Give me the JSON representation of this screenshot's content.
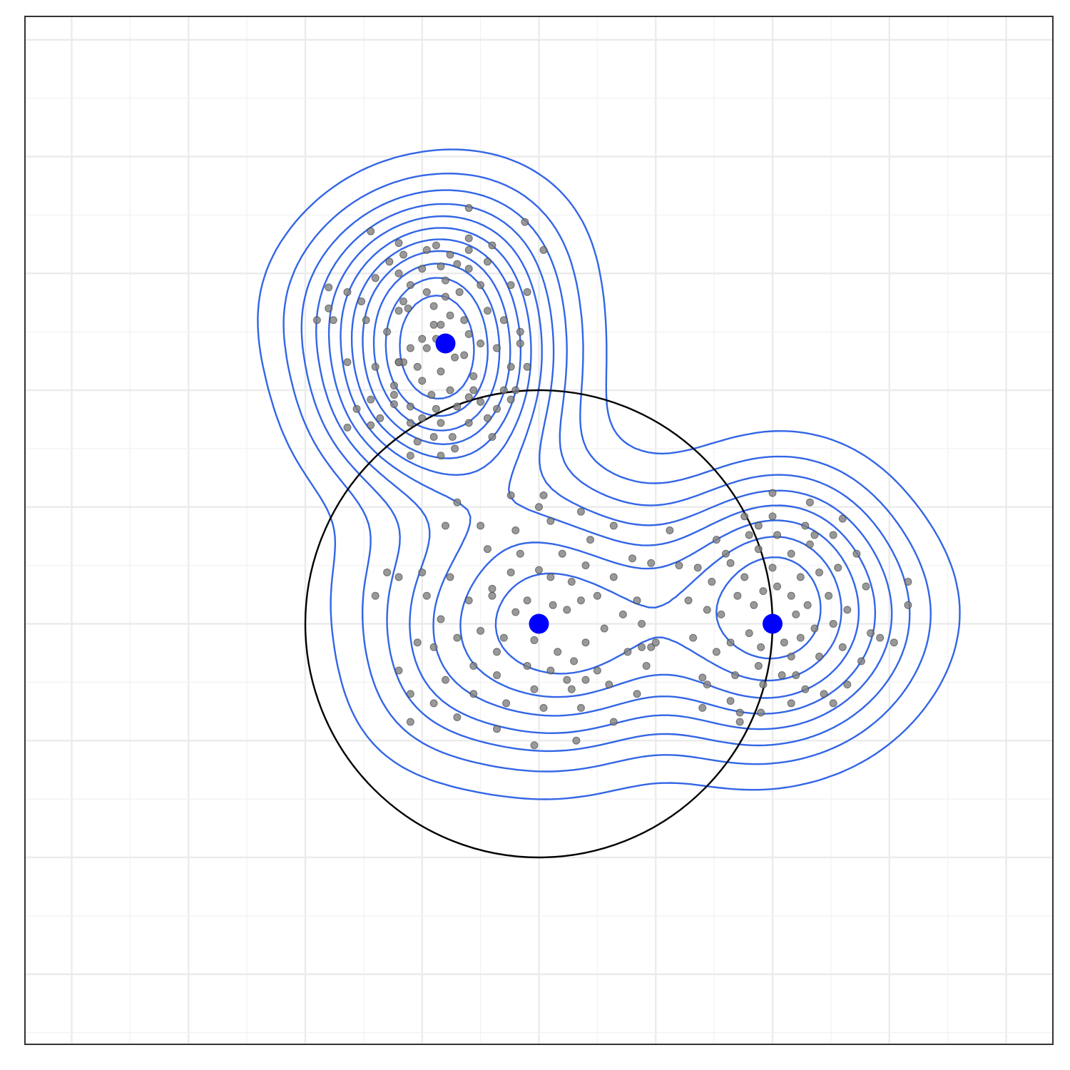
{
  "chart_data": {
    "type": "scatter",
    "title": "",
    "xlabel": "",
    "ylabel": "",
    "xlim": [
      -2.2,
      2.2
    ],
    "ylim": [
      -1.8,
      2.6
    ],
    "grid": true,
    "legend": "none",
    "colors": {
      "panel_border": "#333333",
      "grid_major": "#ebebeb",
      "grid_minor": "#f2f2f2",
      "contour": "#3366e6",
      "points": "#808080",
      "centers": "#0000ff",
      "circle": "#000000"
    },
    "circle": {
      "cx": 0.0,
      "cy": 0.0,
      "r": 1.0
    },
    "centers": [
      {
        "x": -0.4,
        "y": 1.2
      },
      {
        "x": 0.0,
        "y": 0.0
      },
      {
        "x": 1.0,
        "y": 0.0
      }
    ],
    "points": [
      [
        -0.55,
        1.18
      ],
      [
        -0.5,
        1.22
      ],
      [
        -0.45,
        1.28
      ],
      [
        -0.38,
        1.32
      ],
      [
        -0.32,
        1.3
      ],
      [
        -0.42,
        1.08
      ],
      [
        -0.36,
        1.14
      ],
      [
        -0.3,
        1.24
      ],
      [
        -0.5,
        1.04
      ],
      [
        -0.46,
        0.98
      ],
      [
        -0.28,
        1.06
      ],
      [
        -0.6,
        1.12
      ],
      [
        -0.65,
        1.25
      ],
      [
        -0.62,
        1.02
      ],
      [
        -0.7,
        1.1
      ],
      [
        -0.56,
        1.35
      ],
      [
        -0.48,
        1.42
      ],
      [
        -0.4,
        1.47
      ],
      [
        -0.34,
        1.42
      ],
      [
        -0.22,
        1.34
      ],
      [
        -0.18,
        1.18
      ],
      [
        -0.25,
        1.2
      ],
      [
        -0.3,
        0.97
      ],
      [
        -0.35,
        0.93
      ],
      [
        -0.44,
        0.92
      ],
      [
        -0.55,
        0.93
      ],
      [
        -0.62,
        0.98
      ],
      [
        -0.72,
        0.96
      ],
      [
        -0.74,
        1.3
      ],
      [
        -0.76,
        1.38
      ],
      [
        -0.6,
        1.5
      ],
      [
        -0.5,
        1.52
      ],
      [
        -0.42,
        1.53
      ],
      [
        -0.35,
        1.54
      ],
      [
        -0.3,
        1.52
      ],
      [
        -0.25,
        1.45
      ],
      [
        -0.15,
        1.3
      ],
      [
        -0.12,
        1.1
      ],
      [
        -0.15,
        1.0
      ],
      [
        -0.22,
        0.88
      ],
      [
        -0.3,
        0.86
      ],
      [
        -0.37,
        0.8
      ],
      [
        -0.45,
        0.8
      ],
      [
        -0.55,
        0.86
      ],
      [
        -0.68,
        0.88
      ],
      [
        -0.82,
        1.12
      ],
      [
        -0.88,
        1.3
      ],
      [
        -0.9,
        1.35
      ],
      [
        -0.82,
        1.42
      ],
      [
        -0.7,
        1.48
      ],
      [
        -0.64,
        1.55
      ],
      [
        -0.58,
        1.58
      ],
      [
        -0.48,
        1.6
      ],
      [
        -0.38,
        1.58
      ],
      [
        -0.3,
        1.6
      ],
      [
        -0.22,
        1.55
      ],
      [
        -0.12,
        1.45
      ],
      [
        -0.08,
        1.25
      ],
      [
        -0.08,
        1.2
      ],
      [
        -0.1,
        1.0
      ],
      [
        -0.18,
        0.92
      ],
      [
        -0.36,
        0.75
      ],
      [
        -0.42,
        0.72
      ],
      [
        -0.55,
        0.72
      ],
      [
        -0.78,
        0.92
      ],
      [
        -0.82,
        0.84
      ],
      [
        -0.95,
        1.3
      ],
      [
        -0.9,
        1.44
      ],
      [
        -0.72,
        1.68
      ],
      [
        -0.6,
        1.63
      ],
      [
        -0.44,
        1.62
      ],
      [
        -0.3,
        1.65
      ],
      [
        -0.2,
        1.62
      ],
      [
        -0.05,
        1.42
      ],
      [
        -0.05,
        1.1
      ],
      [
        -0.12,
        0.96
      ],
      [
        -0.2,
        0.8
      ],
      [
        -0.25,
        0.95
      ],
      [
        -0.52,
        0.78
      ],
      [
        -0.6,
        1.34
      ],
      [
        -0.4,
        1.4
      ],
      [
        -0.45,
        1.36
      ],
      [
        -0.55,
        1.45
      ],
      [
        -0.32,
        1.15
      ],
      [
        -0.28,
        1.0
      ],
      [
        -0.48,
        1.18
      ],
      [
        -0.42,
        1.28
      ],
      [
        -0.52,
        1.1
      ],
      [
        -0.58,
        1.12
      ],
      [
        -0.38,
        1.0
      ],
      [
        -0.42,
        0.86
      ],
      [
        -0.06,
        1.72
      ],
      [
        0.02,
        1.6
      ],
      [
        -0.3,
        1.78
      ],
      [
        -0.58,
        1.38
      ],
      [
        -0.72,
        0.85
      ],
      [
        -0.62,
        0.94
      ],
      [
        -0.5,
        0.88
      ],
      [
        -0.6,
        1.12
      ],
      [
        -0.44,
        1.22
      ],
      [
        -0.1,
        0.05
      ],
      [
        -0.05,
        0.1
      ],
      [
        0.06,
        0.08
      ],
      [
        0.12,
        0.06
      ],
      [
        -0.15,
        -0.06
      ],
      [
        -0.02,
        -0.07
      ],
      [
        0.18,
        0.1
      ],
      [
        0.08,
        -0.12
      ],
      [
        -0.2,
        0.12
      ],
      [
        -0.25,
        -0.03
      ],
      [
        -0.12,
        0.22
      ],
      [
        0.0,
        0.23
      ],
      [
        0.14,
        0.18
      ],
      [
        0.2,
        -0.08
      ],
      [
        0.15,
        -0.16
      ],
      [
        0.05,
        -0.2
      ],
      [
        -0.05,
        -0.18
      ],
      [
        -0.18,
        -0.12
      ],
      [
        -0.3,
        0.1
      ],
      [
        -0.35,
        -0.06
      ],
      [
        -0.22,
        0.32
      ],
      [
        -0.08,
        0.3
      ],
      [
        0.1,
        0.3
      ],
      [
        0.2,
        0.25
      ],
      [
        0.25,
        0.12
      ],
      [
        0.28,
        -0.02
      ],
      [
        0.25,
        -0.2
      ],
      [
        0.14,
        -0.28
      ],
      [
        -0.02,
        -0.28
      ],
      [
        -0.18,
        -0.22
      ],
      [
        -0.28,
        -0.18
      ],
      [
        -0.38,
        0.2
      ],
      [
        -0.42,
        0.02
      ],
      [
        -0.45,
        -0.1
      ],
      [
        -0.25,
        0.42
      ],
      [
        -0.1,
        0.4
      ],
      [
        0.05,
        0.44
      ],
      [
        0.22,
        0.36
      ],
      [
        0.32,
        0.2
      ],
      [
        0.36,
        0.04
      ],
      [
        0.38,
        -0.12
      ],
      [
        0.3,
        -0.26
      ],
      [
        0.18,
        -0.36
      ],
      [
        0.02,
        -0.36
      ],
      [
        -0.14,
        -0.34
      ],
      [
        -0.28,
        -0.3
      ],
      [
        -0.4,
        -0.24
      ],
      [
        -0.48,
        0.12
      ],
      [
        -0.5,
        0.22
      ],
      [
        -0.52,
        -0.08
      ],
      [
        -0.55,
        -0.3
      ],
      [
        -0.6,
        -0.2
      ],
      [
        -0.35,
        0.52
      ],
      [
        -0.12,
        0.55
      ],
      [
        0.02,
        0.55
      ],
      [
        0.18,
        0.48
      ],
      [
        0.32,
        0.42
      ],
      [
        0.4,
        0.28
      ],
      [
        0.42,
        0.1
      ],
      [
        0.44,
        -0.1
      ],
      [
        0.46,
        -0.18
      ],
      [
        0.42,
        -0.3
      ],
      [
        0.32,
        -0.42
      ],
      [
        0.16,
        -0.5
      ],
      [
        -0.02,
        -0.52
      ],
      [
        -0.18,
        -0.45
      ],
      [
        -0.35,
        -0.4
      ],
      [
        -0.45,
        -0.34
      ],
      [
        -0.55,
        -0.42
      ],
      [
        -0.6,
        0.2
      ],
      [
        -0.65,
        0.22
      ],
      [
        -0.7,
        0.12
      ],
      [
        -0.4,
        0.42
      ],
      [
        0.0,
        0.5
      ],
      [
        0.12,
        -0.24
      ],
      [
        0.2,
        -0.24
      ],
      [
        -0.2,
        0.15
      ],
      [
        0.05,
        0.2
      ],
      [
        0.92,
        0.08
      ],
      [
        0.96,
        0.14
      ],
      [
        1.02,
        0.16
      ],
      [
        1.08,
        0.12
      ],
      [
        1.1,
        0.04
      ],
      [
        0.9,
        -0.04
      ],
      [
        0.95,
        -0.1
      ],
      [
        1.05,
        -0.08
      ],
      [
        1.12,
        -0.06
      ],
      [
        0.85,
        0.12
      ],
      [
        0.88,
        0.2
      ],
      [
        1.0,
        0.24
      ],
      [
        1.12,
        0.2
      ],
      [
        1.15,
        0.08
      ],
      [
        1.18,
        -0.02
      ],
      [
        1.08,
        -0.14
      ],
      [
        0.94,
        -0.18
      ],
      [
        0.82,
        -0.08
      ],
      [
        0.78,
        0.04
      ],
      [
        0.82,
        0.26
      ],
      [
        0.94,
        0.32
      ],
      [
        1.08,
        0.3
      ],
      [
        1.2,
        0.22
      ],
      [
        1.24,
        0.12
      ],
      [
        1.26,
        0.0
      ],
      [
        1.2,
        -0.14
      ],
      [
        1.1,
        -0.22
      ],
      [
        0.96,
        -0.26
      ],
      [
        0.84,
        -0.22
      ],
      [
        0.76,
        -0.12
      ],
      [
        0.72,
        0.06
      ],
      [
        0.74,
        0.18
      ],
      [
        0.8,
        0.3
      ],
      [
        0.9,
        0.38
      ],
      [
        1.02,
        0.38
      ],
      [
        1.16,
        0.34
      ],
      [
        1.28,
        0.24
      ],
      [
        1.32,
        0.06
      ],
      [
        1.3,
        -0.1
      ],
      [
        1.22,
        -0.3
      ],
      [
        1.08,
        -0.34
      ],
      [
        0.95,
        -0.38
      ],
      [
        0.82,
        -0.33
      ],
      [
        0.72,
        -0.26
      ],
      [
        0.66,
        -0.06
      ],
      [
        0.64,
        0.1
      ],
      [
        0.68,
        0.24
      ],
      [
        0.76,
        0.36
      ],
      [
        0.88,
        0.46
      ],
      [
        1.0,
        0.46
      ],
      [
        1.14,
        0.42
      ],
      [
        1.26,
        0.38
      ],
      [
        1.36,
        0.3
      ],
      [
        1.4,
        0.16
      ],
      [
        1.42,
        -0.04
      ],
      [
        1.38,
        -0.16
      ],
      [
        1.32,
        -0.26
      ],
      [
        1.14,
        -0.28
      ],
      [
        1.04,
        -0.22
      ],
      [
        0.94,
        0.42
      ],
      [
        0.6,
        0.25
      ],
      [
        0.7,
        -0.36
      ],
      [
        0.86,
        -0.42
      ],
      [
        0.56,
        0.4
      ],
      [
        0.48,
        0.26
      ],
      [
        0.44,
        0.0
      ],
      [
        0.48,
        -0.1
      ],
      [
        0.5,
        -0.08
      ],
      [
        0.7,
        -0.23
      ],
      [
        0.86,
        -0.38
      ],
      [
        1.26,
        -0.34
      ],
      [
        1.58,
        0.18
      ],
      [
        1.58,
        0.08
      ],
      [
        1.46,
        -0.06
      ],
      [
        1.52,
        -0.08
      ],
      [
        1.3,
        0.45
      ],
      [
        1.16,
        0.52
      ],
      [
        1.0,
        0.56
      ],
      [
        1.18,
        0.38
      ]
    ]
  }
}
